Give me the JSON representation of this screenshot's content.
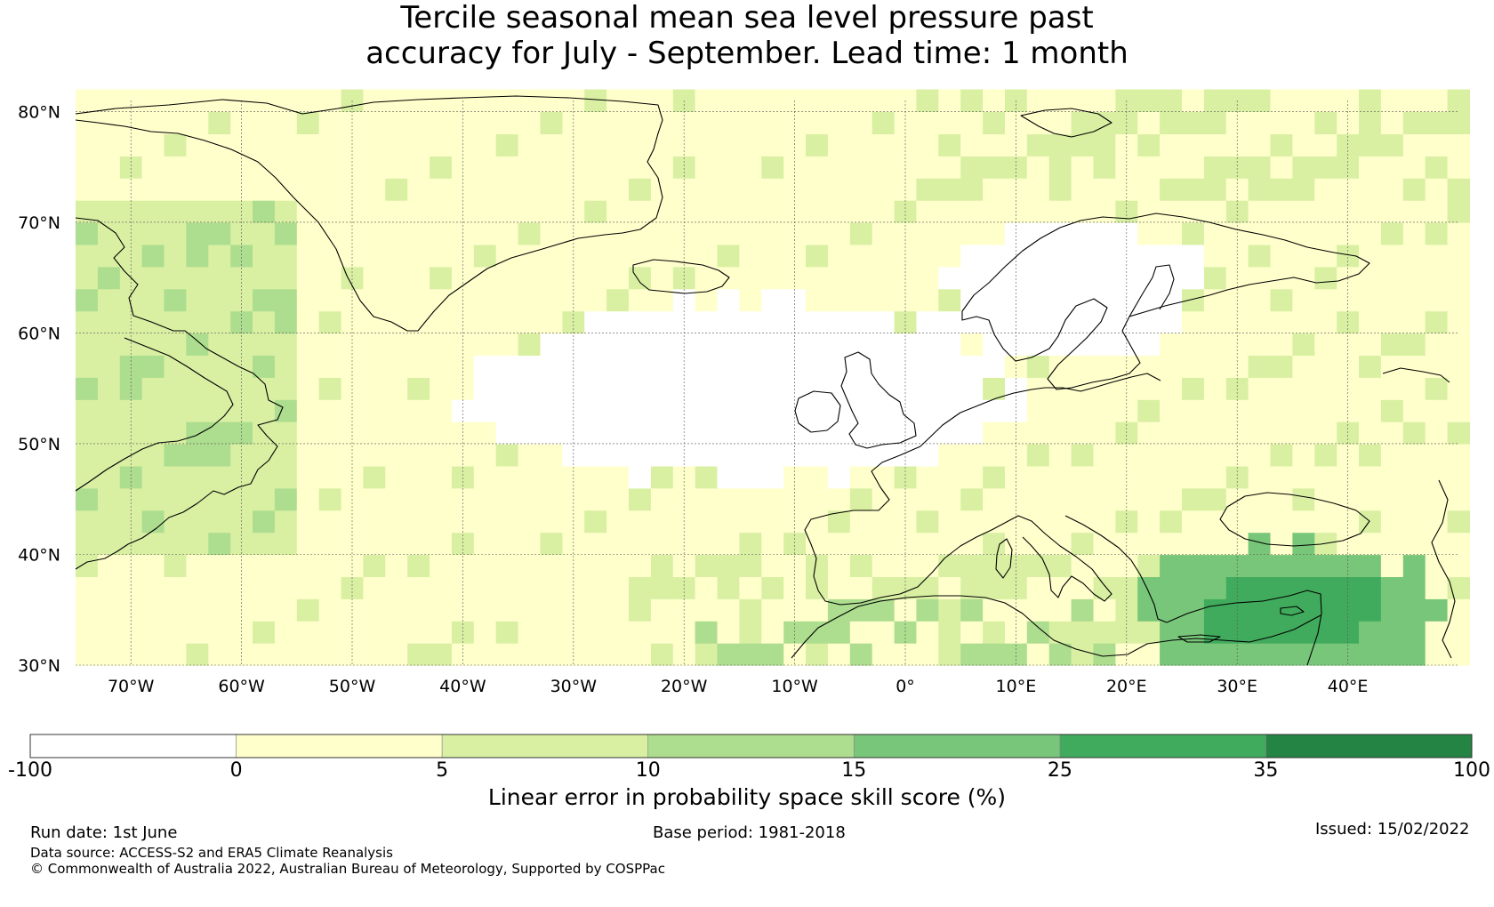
{
  "title_line1": "Tercile seasonal mean sea level pressure past",
  "title_line2": "accuracy for July - September. Lead time: 1 month",
  "map": {
    "lat_range": [
      30,
      81
    ],
    "lon_range": [
      -75,
      50
    ],
    "lat_labels": [
      "80°N",
      "70°N",
      "60°N",
      "50°N",
      "40°N",
      "30°N"
    ],
    "lat_values": [
      80,
      70,
      60,
      50,
      40,
      30
    ],
    "lon_labels": [
      "70°W",
      "60°W",
      "50°W",
      "40°W",
      "30°W",
      "20°W",
      "10°W",
      "0°",
      "10°E",
      "20°E",
      "30°E",
      "40°E"
    ],
    "lon_values": [
      -70,
      -60,
      -50,
      -40,
      -30,
      -20,
      -10,
      0,
      10,
      20,
      30,
      40
    ],
    "gridlines": true
  },
  "colorbar": {
    "bounds": [
      "-100",
      "0",
      "5",
      "10",
      "15",
      "25",
      "35",
      "100"
    ],
    "colors": [
      "#ffffff",
      "#ffffcc",
      "#d9f0a3",
      "#addd8e",
      "#78c679",
      "#41ab5d",
      "#238443"
    ],
    "label": "Linear error in probability space skill score (%)"
  },
  "footer": {
    "run_date": "Run date: 1st June",
    "base_period": "Base period: 1981-2018",
    "issued": "Issued: 15/02/2022",
    "data_source": "Data source: ACCESS-S2 and ERA5 Climate Reanalysis",
    "copyright": "© Commonwealth of Australia 2022, Australian Bureau of Meteorology, Supported by COSPPac"
  }
}
